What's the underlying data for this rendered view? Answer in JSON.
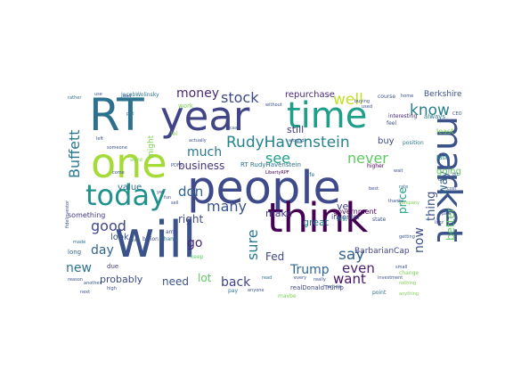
{
  "words": [
    {
      "text": "people",
      "color": "#3e4a89"
    },
    {
      "text": "will",
      "color": "#3b528b"
    },
    {
      "text": "RT",
      "color": "#2c728e"
    },
    {
      "text": "year",
      "color": "#414487"
    },
    {
      "text": "time",
      "color": "#1f9e89"
    },
    {
      "text": "one",
      "color": "#a5db36"
    },
    {
      "text": "think",
      "color": "#440154"
    },
    {
      "text": "market",
      "color": "#3b528b"
    },
    {
      "text": "today",
      "color": "#21918c"
    },
    {
      "text": "RudyHavenstein",
      "color": "#26828e"
    },
    {
      "text": "stock",
      "color": "#3e4989"
    },
    {
      "text": "money",
      "color": "#482878"
    },
    {
      "text": "well",
      "color": "#c2df23"
    },
    {
      "text": "see",
      "color": "#1fa188"
    },
    {
      "text": "much",
      "color": "#2a788e"
    },
    {
      "text": "never",
      "color": "#5ec962"
    },
    {
      "text": "know",
      "color": "#287d8e"
    },
    {
      "text": "Buffett",
      "color": "#2a788e"
    },
    {
      "text": "business",
      "color": "#46327e"
    },
    {
      "text": "many",
      "color": "#3b528b"
    },
    {
      "text": "don",
      "color": "#33638d"
    },
    {
      "text": "good",
      "color": "#404688"
    },
    {
      "text": "right",
      "color": "#3e4989"
    },
    {
      "text": "sure",
      "color": "#2a788e"
    },
    {
      "text": "say",
      "color": "#33638d"
    },
    {
      "text": "even",
      "color": "#481f70"
    },
    {
      "text": "day",
      "color": "#33638d"
    },
    {
      "text": "go",
      "color": "#482677"
    },
    {
      "text": "Fed",
      "color": "#3e4989"
    },
    {
      "text": "Trump",
      "color": "#31688e"
    },
    {
      "text": "new",
      "color": "#2c728e"
    },
    {
      "text": "want",
      "color": "#471164"
    },
    {
      "text": "back",
      "color": "#414487"
    },
    {
      "text": "need",
      "color": "#3b528b"
    },
    {
      "text": "lot",
      "color": "#5ec962"
    },
    {
      "text": "probably",
      "color": "#3e4a89"
    },
    {
      "text": "now",
      "color": "#3b528b"
    },
    {
      "text": "thing",
      "color": "#3b528b"
    },
    {
      "text": "way",
      "color": "#31688e"
    },
    {
      "text": "better",
      "color": "#5ec962"
    },
    {
      "text": "price",
      "color": "#1fa188"
    },
    {
      "text": "great",
      "color": "#2a788e"
    },
    {
      "text": "ve",
      "color": "#414487"
    },
    {
      "text": "make",
      "color": "#443983"
    },
    {
      "text": "repurchase",
      "color": "#482878"
    },
    {
      "text": "Berkshire",
      "color": "#3b528b"
    },
    {
      "text": "still",
      "color": "#443983"
    },
    {
      "text": "buy",
      "color": "#3e4989"
    },
    {
      "text": "value",
      "color": "#2c728e"
    },
    {
      "text": "look",
      "color": "#3b528b"
    },
    {
      "text": "going",
      "color": "#5ec962"
    },
    {
      "text": "BarbarianCap",
      "color": "#404688"
    },
    {
      "text": "government",
      "color": "#440154"
    },
    {
      "text": "RT RudyHavenstein",
      "color": "#2c728e"
    },
    {
      "text": "investor",
      "color": "#3e4989"
    },
    {
      "text": "something",
      "color": "#443983"
    },
    {
      "text": "last",
      "color": "#21918c"
    },
    {
      "text": "least",
      "color": "#7ad151"
    },
    {
      "text": "realDonaldTrump",
      "color": "#3e4989"
    },
    {
      "text": "might",
      "color": "#7ad151"
    },
    {
      "text": "JacobWolinsky",
      "color": "#2c728e"
    },
    {
      "text": "always",
      "color": "#2a788e"
    },
    {
      "text": "interesting",
      "color": "#482878"
    },
    {
      "text": "course",
      "color": "#3b528b"
    },
    {
      "text": "home",
      "color": "#3b528b"
    },
    {
      "text": "feel",
      "color": "#3b528b"
    },
    {
      "text": "position",
      "color": "#2a788e"
    },
    {
      "text": "higher",
      "color": "#440154"
    },
    {
      "text": "state",
      "color": "#3b528b"
    },
    {
      "text": "first",
      "color": "#21918c"
    },
    {
      "text": "high",
      "color": "#3b528b"
    },
    {
      "text": "due",
      "color": "#443983"
    },
    {
      "text": "long",
      "color": "#33638d"
    },
    {
      "text": "made",
      "color": "#2c728e"
    },
    {
      "text": "another",
      "color": "#3b528b"
    },
    {
      "text": "rather",
      "color": "#2c728e"
    },
    {
      "text": "use",
      "color": "#3b528b"
    },
    {
      "text": "work",
      "color": "#7ad151"
    },
    {
      "text": "put",
      "color": "#2c728e"
    },
    {
      "text": "left",
      "color": "#3b528b"
    },
    {
      "text": "actually",
      "color": "#3b528b"
    },
    {
      "text": "cash",
      "color": "#3b528b"
    },
    {
      "text": "without",
      "color": "#3b528b"
    },
    {
      "text": "used",
      "color": "#3b528b"
    },
    {
      "text": "buying",
      "color": "#3b528b"
    },
    {
      "text": "around",
      "color": "#3b528b"
    },
    {
      "text": "read",
      "color": "#2c728e"
    },
    {
      "text": "pay",
      "color": "#2c728e"
    },
    {
      "text": "keep",
      "color": "#5ec962"
    },
    {
      "text": "article",
      "color": "#3b528b"
    },
    {
      "text": "every",
      "color": "#3b528b"
    },
    {
      "text": "really",
      "color": "#3b528b"
    },
    {
      "text": "maybe",
      "color": "#7ad151"
    },
    {
      "text": "point",
      "color": "#2c728e"
    },
    {
      "text": "nothing",
      "color": "#7ad151"
    },
    {
      "text": "anything",
      "color": "#7ad151"
    },
    {
      "text": "next",
      "color": "#3b528b"
    },
    {
      "text": "life",
      "color": "#2c728e"
    },
    {
      "text": "rate",
      "color": "#2c728e"
    },
    {
      "text": "small",
      "color": "#3b528b"
    },
    {
      "text": "investment",
      "color": "#3b528b"
    },
    {
      "text": "change",
      "color": "#7ad151"
    },
    {
      "text": "low",
      "color": "#3b528b"
    },
    {
      "text": "bad",
      "color": "#3b528b"
    },
    {
      "text": "someone",
      "color": "#3b528b"
    },
    {
      "text": "billion",
      "color": "#3b528b"
    },
    {
      "text": "Thank",
      "color": "#2c728e"
    },
    {
      "text": "LibertyRPF",
      "color": "#440154"
    },
    {
      "text": "reason",
      "color": "#3b528b"
    },
    {
      "text": "anyone",
      "color": "#3b528b"
    },
    {
      "text": "amp",
      "color": "#3b528b"
    },
    {
      "text": "world",
      "color": "#7ad151"
    },
    {
      "text": "lazz",
      "color": "#3b528b"
    },
    {
      "text": "cost",
      "color": "#3b528b"
    },
    {
      "text": "part",
      "color": "#3b528b"
    },
    {
      "text": "CEO",
      "color": "#3b528b"
    },
    {
      "text": "best",
      "color": "#3b528b"
    },
    {
      "text": "fidelinvestor",
      "color": "#3b528b"
    },
    {
      "text": "old",
      "color": "#3b528b"
    },
    {
      "text": "company",
      "color": "#7ad151"
    },
    {
      "text": "bit",
      "color": "#3b528b"
    },
    {
      "text": "yes",
      "color": "#3b528b"
    },
    {
      "text": "fun",
      "color": "#3b528b"
    },
    {
      "text": "lol",
      "color": "#7ad151"
    },
    {
      "text": "wait",
      "color": "#3b528b"
    },
    {
      "text": "getting",
      "color": "#3b528b"
    },
    {
      "text": "thanks",
      "color": "#3b528b"
    },
    {
      "text": "come",
      "color": "#3b528b"
    },
    {
      "text": "sell",
      "color": "#3b528b"
    },
    {
      "text": "PDFS",
      "color": "#3b528b"
    }
  ]
}
